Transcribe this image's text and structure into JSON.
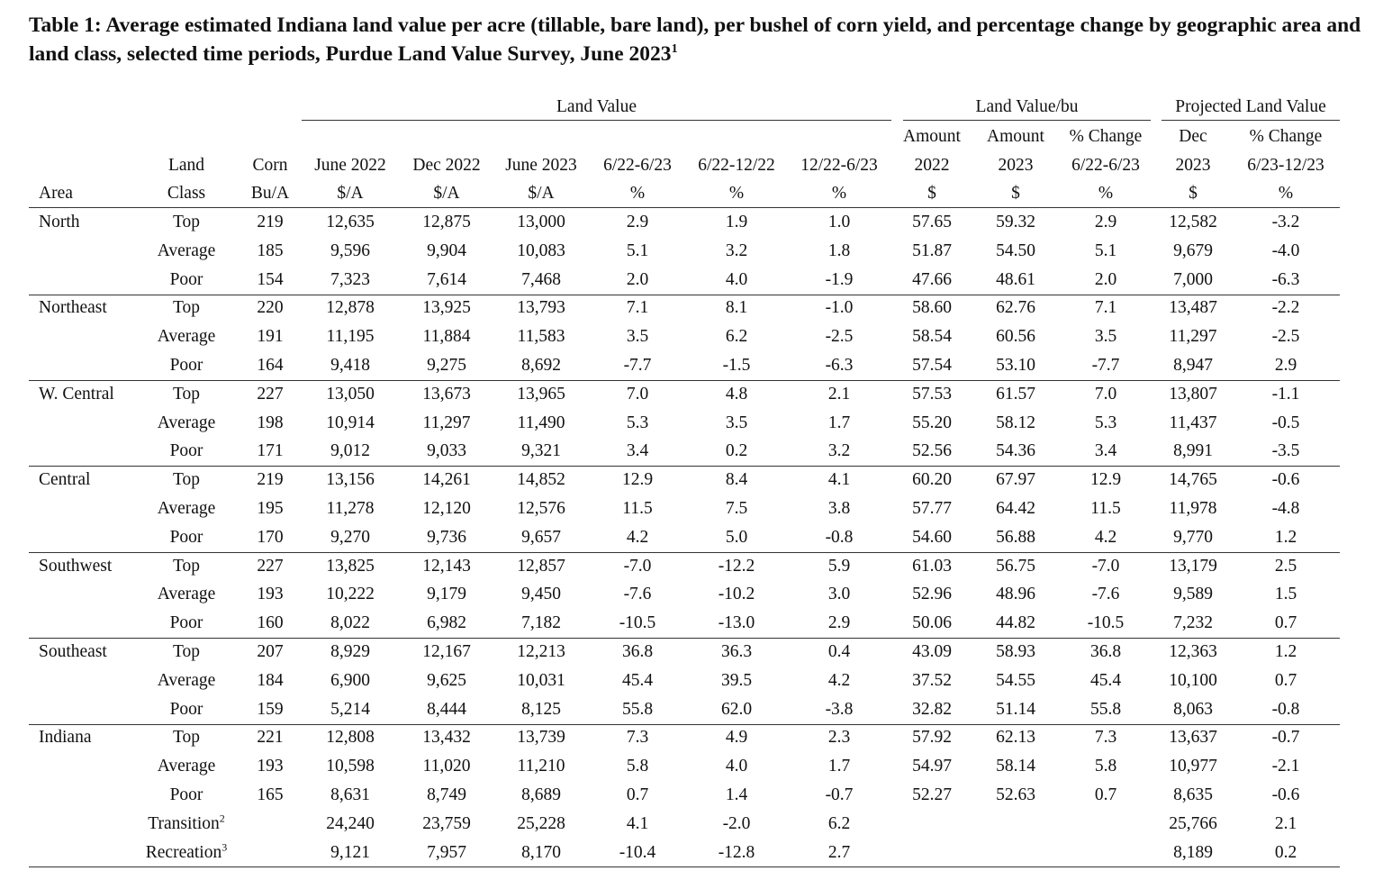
{
  "title": "Table 1: Average estimated Indiana land value per acre (tillable, bare land), per bushel of corn yield, and percentage change by geographic area and land class, selected time periods, Purdue Land Value Survey, June 2023",
  "title_note": "1",
  "groups": [
    {
      "label": "Land Value",
      "from": 3,
      "to": 8
    },
    {
      "label": "Land Value/bu",
      "from": 9,
      "to": 11
    },
    {
      "label": "Projected Land Value",
      "from": 12,
      "to": 13
    }
  ],
  "columns": [
    [
      "Area"
    ],
    [
      "Land",
      "Class"
    ],
    [
      "Corn",
      "Bu/A"
    ],
    [
      "June 2022",
      "$/A"
    ],
    [
      "Dec 2022",
      "$/A"
    ],
    [
      "June 2023",
      "$/A"
    ],
    [
      "6/22-6/23",
      "%"
    ],
    [
      "6/22-12/22",
      "%"
    ],
    [
      "12/22-6/23",
      "%"
    ],
    [
      "Amount",
      "2022",
      "$"
    ],
    [
      "Amount",
      "2023",
      "$"
    ],
    [
      "% Change",
      "6/22-6/23",
      "%"
    ],
    [
      "Dec",
      "2023",
      "$"
    ],
    [
      "% Change",
      "6/23-12/23",
      "%"
    ]
  ],
  "rows": [
    {
      "area": "North",
      "class": "Top",
      "cells": [
        "219",
        "12,635",
        "12,875",
        "13,000",
        "2.9",
        "1.9",
        "1.0",
        "57.65",
        "59.32",
        "2.9",
        "12,582",
        "-3.2"
      ]
    },
    {
      "class": "Average",
      "cells": [
        "185",
        "9,596",
        "9,904",
        "10,083",
        "5.1",
        "3.2",
        "1.8",
        "51.87",
        "54.50",
        "5.1",
        "9,679",
        "-4.0"
      ]
    },
    {
      "class": "Poor",
      "cells": [
        "154",
        "7,323",
        "7,614",
        "7,468",
        "2.0",
        "4.0",
        "-1.9",
        "47.66",
        "48.61",
        "2.0",
        "7,000",
        "-6.3"
      ]
    },
    {
      "area": "Northeast",
      "class": "Top",
      "cells": [
        "220",
        "12,878",
        "13,925",
        "13,793",
        "7.1",
        "8.1",
        "-1.0",
        "58.60",
        "62.76",
        "7.1",
        "13,487",
        "-2.2"
      ]
    },
    {
      "class": "Average",
      "cells": [
        "191",
        "11,195",
        "11,884",
        "11,583",
        "3.5",
        "6.2",
        "-2.5",
        "58.54",
        "60.56",
        "3.5",
        "11,297",
        "-2.5"
      ]
    },
    {
      "class": "Poor",
      "cells": [
        "164",
        "9,418",
        "9,275",
        "8,692",
        "-7.7",
        "-1.5",
        "-6.3",
        "57.54",
        "53.10",
        "-7.7",
        "8,947",
        "2.9"
      ]
    },
    {
      "area": "W. Central",
      "class": "Top",
      "cells": [
        "227",
        "13,050",
        "13,673",
        "13,965",
        "7.0",
        "4.8",
        "2.1",
        "57.53",
        "61.57",
        "7.0",
        "13,807",
        "-1.1"
      ]
    },
    {
      "class": "Average",
      "cells": [
        "198",
        "10,914",
        "11,297",
        "11,490",
        "5.3",
        "3.5",
        "1.7",
        "55.20",
        "58.12",
        "5.3",
        "11,437",
        "-0.5"
      ]
    },
    {
      "class": "Poor",
      "cells": [
        "171",
        "9,012",
        "9,033",
        "9,321",
        "3.4",
        "0.2",
        "3.2",
        "52.56",
        "54.36",
        "3.4",
        "8,991",
        "-3.5"
      ]
    },
    {
      "area": "Central",
      "class": "Top",
      "cells": [
        "219",
        "13,156",
        "14,261",
        "14,852",
        "12.9",
        "8.4",
        "4.1",
        "60.20",
        "67.97",
        "12.9",
        "14,765",
        "-0.6"
      ]
    },
    {
      "class": "Average",
      "cells": [
        "195",
        "11,278",
        "12,120",
        "12,576",
        "11.5",
        "7.5",
        "3.8",
        "57.77",
        "64.42",
        "11.5",
        "11,978",
        "-4.8"
      ]
    },
    {
      "class": "Poor",
      "cells": [
        "170",
        "9,270",
        "9,736",
        "9,657",
        "4.2",
        "5.0",
        "-0.8",
        "54.60",
        "56.88",
        "4.2",
        "9,770",
        "1.2"
      ]
    },
    {
      "area": "Southwest",
      "class": "Top",
      "cells": [
        "227",
        "13,825",
        "12,143",
        "12,857",
        "-7.0",
        "-12.2",
        "5.9",
        "61.03",
        "56.75",
        "-7.0",
        "13,179",
        "2.5"
      ]
    },
    {
      "class": "Average",
      "cells": [
        "193",
        "10,222",
        "9,179",
        "9,450",
        "-7.6",
        "-10.2",
        "3.0",
        "52.96",
        "48.96",
        "-7.6",
        "9,589",
        "1.5"
      ]
    },
    {
      "class": "Poor",
      "cells": [
        "160",
        "8,022",
        "6,982",
        "7,182",
        "-10.5",
        "-13.0",
        "2.9",
        "50.06",
        "44.82",
        "-10.5",
        "7,232",
        "0.7"
      ]
    },
    {
      "area": "Southeast",
      "class": "Top",
      "cells": [
        "207",
        "8,929",
        "12,167",
        "12,213",
        "36.8",
        "36.3",
        "0.4",
        "43.09",
        "58.93",
        "36.8",
        "12,363",
        "1.2"
      ]
    },
    {
      "class": "Average",
      "cells": [
        "184",
        "6,900",
        "9,625",
        "10,031",
        "45.4",
        "39.5",
        "4.2",
        "37.52",
        "54.55",
        "45.4",
        "10,100",
        "0.7"
      ]
    },
    {
      "class": "Poor",
      "cells": [
        "159",
        "5,214",
        "8,444",
        "8,125",
        "55.8",
        "62.0",
        "-3.8",
        "32.82",
        "51.14",
        "55.8",
        "8,063",
        "-0.8"
      ]
    },
    {
      "area": "Indiana",
      "class": "Top",
      "cells": [
        "221",
        "12,808",
        "13,432",
        "13,739",
        "7.3",
        "4.9",
        "2.3",
        "57.92",
        "62.13",
        "7.3",
        "13,637",
        "-0.7"
      ]
    },
    {
      "class": "Average",
      "cells": [
        "193",
        "10,598",
        "11,020",
        "11,210",
        "5.8",
        "4.0",
        "1.7",
        "54.97",
        "58.14",
        "5.8",
        "10,977",
        "-2.1"
      ]
    },
    {
      "class": "Poor",
      "cells": [
        "165",
        "8,631",
        "8,749",
        "8,689",
        "0.7",
        "1.4",
        "-0.7",
        "52.27",
        "52.63",
        "0.7",
        "8,635",
        "-0.6"
      ]
    },
    {
      "class": "Transition",
      "class_note": "2",
      "cells": [
        null,
        "24,240",
        "23,759",
        "25,228",
        "4.1",
        "-2.0",
        "6.2",
        null,
        null,
        null,
        "25,766",
        "2.1"
      ]
    },
    {
      "class": "Recreation",
      "class_note": "3",
      "cells": [
        null,
        "9,121",
        "7,957",
        "8,170",
        "-10.4",
        "-12.8",
        "2.7",
        null,
        null,
        null,
        "8,189",
        "0.2"
      ]
    }
  ]
}
